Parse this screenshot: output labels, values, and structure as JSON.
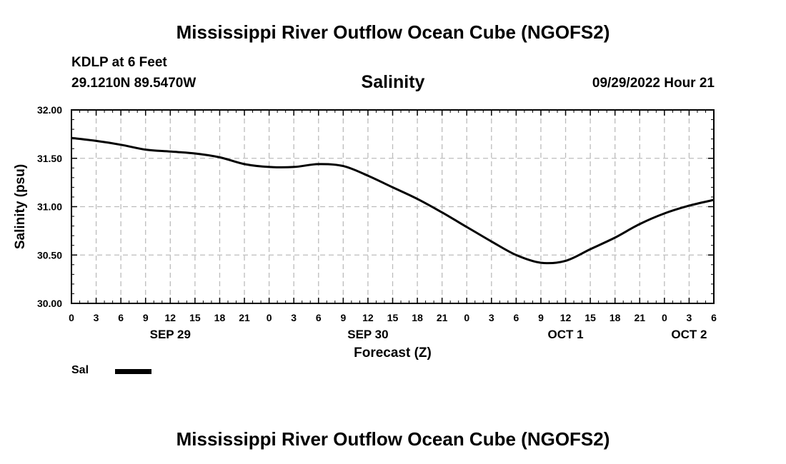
{
  "header": {
    "title": "Mississippi River Outflow Ocean Cube (NGOFS2)",
    "station": "KDLP at 6 Feet",
    "coordinates": "29.1210N  89.5470W",
    "subtitle": "Salinity",
    "run_time": "09/29/2022 Hour 21"
  },
  "legend": {
    "label": "Sal",
    "color": "#000000"
  },
  "footer": {
    "title": "Mississippi River Outflow Ocean Cube (NGOFS2)"
  },
  "chart_data": {
    "type": "line",
    "title": "Salinity",
    "xlabel": "Forecast (Z)",
    "ylabel": "Salinity (psu)",
    "ylim": [
      30.0,
      32.0
    ],
    "yticks": [
      "30.00",
      "30.50",
      "31.00",
      "31.50",
      "32.00"
    ],
    "xlim": [
      0,
      78
    ],
    "x_tick_labels": [
      "0",
      "3",
      "6",
      "9",
      "12",
      "15",
      "18",
      "21",
      "0",
      "3",
      "6",
      "9",
      "12",
      "15",
      "18",
      "21",
      "0",
      "3",
      "6",
      "9",
      "12",
      "15",
      "18",
      "21",
      "0",
      "3",
      "6"
    ],
    "date_labels": [
      {
        "label": "SEP 29",
        "hour": 12
      },
      {
        "label": "SEP 30",
        "hour": 36
      },
      {
        "label": "OCT 1",
        "hour": 60
      },
      {
        "label": "OCT 2",
        "hour": 75
      }
    ],
    "grid": true,
    "series": [
      {
        "name": "Sal",
        "x": [
          0,
          3,
          6,
          9,
          12,
          15,
          18,
          21,
          24,
          27,
          30,
          33,
          36,
          39,
          42,
          45,
          48,
          51,
          54,
          57,
          60,
          63,
          66,
          69,
          72,
          75,
          78
        ],
        "values": [
          31.71,
          31.68,
          31.64,
          31.59,
          31.57,
          31.55,
          31.51,
          31.44,
          31.41,
          31.41,
          31.44,
          31.42,
          31.32,
          31.2,
          31.08,
          30.94,
          30.79,
          30.64,
          30.5,
          30.42,
          30.44,
          30.56,
          30.68,
          30.82,
          30.93,
          31.01,
          31.07
        ]
      }
    ]
  }
}
